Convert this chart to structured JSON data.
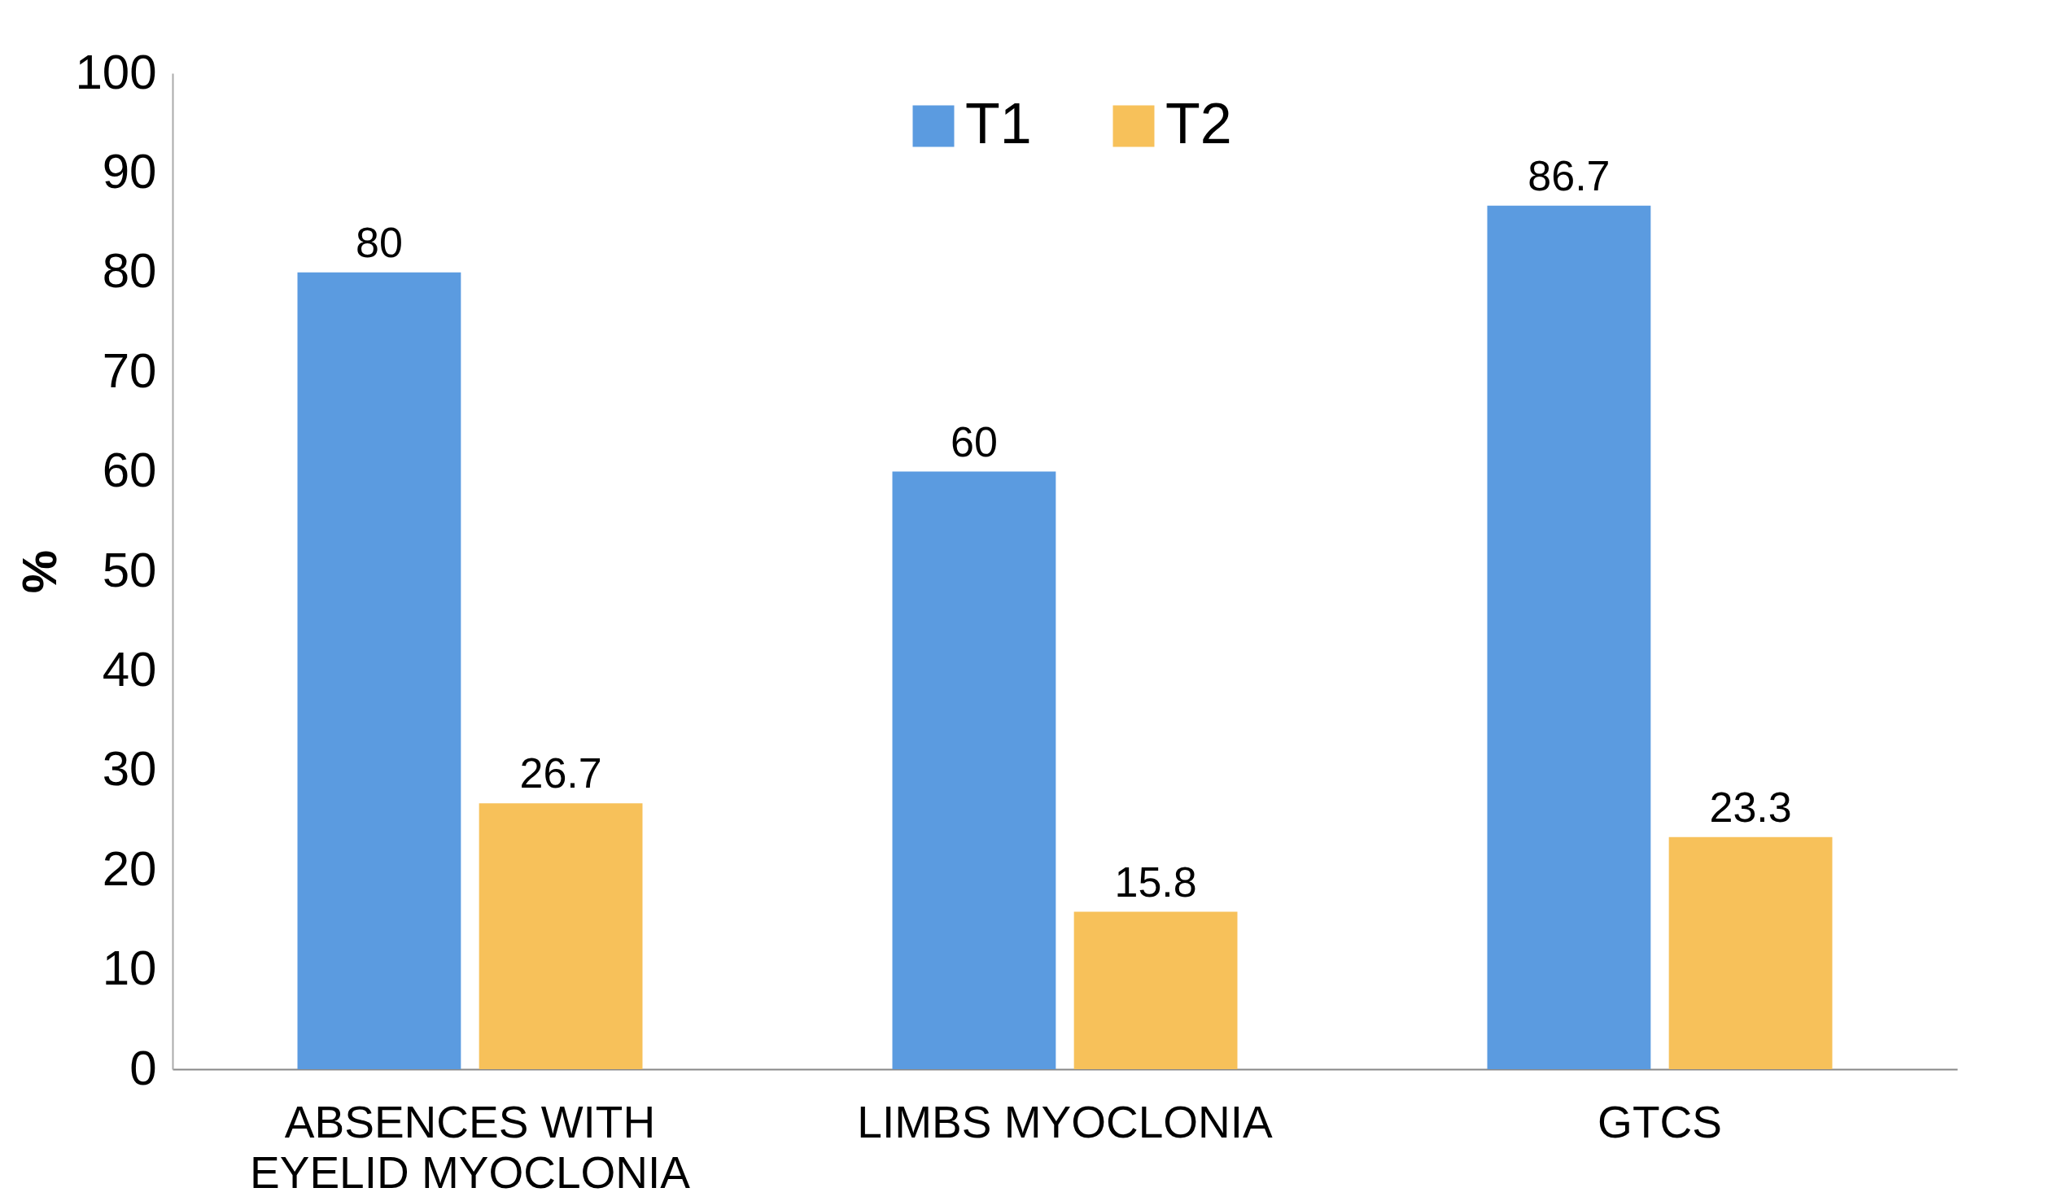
{
  "chart_data": {
    "type": "bar",
    "ylabel": "%",
    "categories": [
      "ABSENCES WITH EYELID MYOCLONIA",
      "LIMBS  MYOCLONIA",
      "GTCS"
    ],
    "series": [
      {
        "name": "T1",
        "color": "#5b9be0",
        "values": [
          80,
          60,
          86.7
        ]
      },
      {
        "name": "T2",
        "color": "#f7c15a",
        "values": [
          26.7,
          15.8,
          23.3
        ]
      }
    ],
    "ylim": [
      0,
      100
    ],
    "yticks": [
      0,
      10,
      20,
      30,
      40,
      50,
      60,
      70,
      80,
      90,
      100
    ],
    "data_labels": true,
    "legend": "top",
    "grid": false
  }
}
